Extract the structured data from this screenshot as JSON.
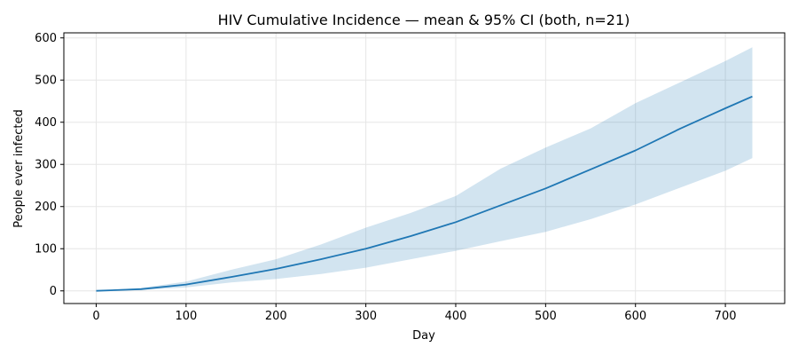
{
  "chart_data": {
    "type": "line",
    "title": "HIV Cumulative Incidence — mean & 95% CI (both, n=21)",
    "xlabel": "Day",
    "ylabel": "People ever infected",
    "xlim": [
      -36,
      766
    ],
    "ylim": [
      -30,
      612
    ],
    "xticks": [
      0,
      100,
      200,
      300,
      400,
      500,
      600,
      700
    ],
    "yticks": [
      0,
      100,
      200,
      300,
      400,
      500,
      600
    ],
    "grid": true,
    "colors": {
      "line": "#1f77b4",
      "band": "#1f77b4",
      "grid": "#e6e6e6"
    },
    "x": [
      0,
      50,
      100,
      150,
      200,
      250,
      300,
      350,
      400,
      450,
      500,
      550,
      600,
      650,
      700,
      730
    ],
    "series": [
      {
        "values": [
          0,
          4,
          15,
          33,
          52,
          75,
          100,
          130,
          163,
          203,
          243,
          288,
          333,
          385,
          433,
          461
        ]
      }
    ],
    "band": {
      "lower": [
        0,
        2,
        8,
        20,
        28,
        40,
        55,
        75,
        95,
        118,
        140,
        170,
        205,
        245,
        285,
        315
      ],
      "upper": [
        0,
        7,
        22,
        50,
        75,
        110,
        150,
        185,
        225,
        290,
        340,
        385,
        445,
        495,
        545,
        578
      ]
    }
  }
}
